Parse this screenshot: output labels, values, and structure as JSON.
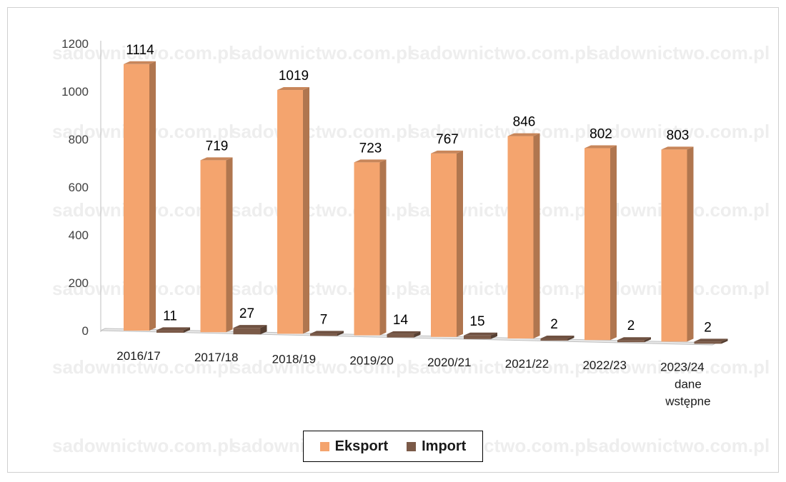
{
  "chart_data": {
    "type": "bar",
    "categories": [
      "2016/17",
      "2017/18",
      "2018/19",
      "2019/20",
      "2020/21",
      "2021/22",
      "2022/23",
      "2023/24 dane wstępne"
    ],
    "category_lines": [
      [
        "2016/17"
      ],
      [
        "2017/18"
      ],
      [
        "2018/19"
      ],
      [
        "2019/20"
      ],
      [
        "2020/21"
      ],
      [
        "2021/22"
      ],
      [
        "2022/23"
      ],
      [
        "2023/24",
        "dane",
        "wstępne"
      ]
    ],
    "series": [
      {
        "name": "Eksport",
        "values": [
          1114,
          719,
          1019,
          723,
          767,
          846,
          802,
          803
        ],
        "color": "#F4A46E"
      },
      {
        "name": "Import",
        "values": [
          11,
          27,
          7,
          14,
          15,
          2,
          2,
          2
        ],
        "color": "#7B5A48"
      }
    ],
    "yticks": [
      "0",
      "200",
      "400",
      "600",
      "800",
      "1000",
      "1200"
    ],
    "ylim": [
      0,
      1200
    ],
    "legend_position": "bottom",
    "grid": false,
    "watermark_text": "sadownictwo.com.pl"
  }
}
